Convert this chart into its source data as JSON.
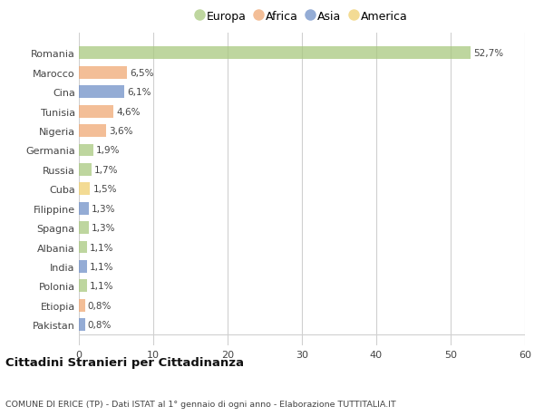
{
  "countries": [
    "Romania",
    "Marocco",
    "Cina",
    "Tunisia",
    "Nigeria",
    "Germania",
    "Russia",
    "Cuba",
    "Filippine",
    "Spagna",
    "Albania",
    "India",
    "Polonia",
    "Etiopia",
    "Pakistan"
  ],
  "values": [
    52.7,
    6.5,
    6.1,
    4.6,
    3.6,
    1.9,
    1.7,
    1.5,
    1.3,
    1.3,
    1.1,
    1.1,
    1.1,
    0.8,
    0.8
  ],
  "labels": [
    "52,7%",
    "6,5%",
    "6,1%",
    "4,6%",
    "3,6%",
    "1,9%",
    "1,7%",
    "1,5%",
    "1,3%",
    "1,3%",
    "1,1%",
    "1,1%",
    "1,1%",
    "0,8%",
    "0,8%"
  ],
  "continents": [
    "Europa",
    "Africa",
    "Asia",
    "Africa",
    "Africa",
    "Europa",
    "Europa",
    "America",
    "Asia",
    "Europa",
    "Europa",
    "Asia",
    "Europa",
    "Africa",
    "Asia"
  ],
  "continent_colors": {
    "Europa": "#a8c97f",
    "Africa": "#f0a875",
    "Asia": "#7090c8",
    "America": "#f0d070"
  },
  "legend_order": [
    "Europa",
    "Africa",
    "Asia",
    "America"
  ],
  "legend_colors": [
    "#a8c97f",
    "#f0a875",
    "#7090c8",
    "#f0d070"
  ],
  "background_color": "#ffffff",
  "grid_color": "#d0d0d0",
  "xlim": [
    0,
    60
  ],
  "xticks": [
    0,
    10,
    20,
    30,
    40,
    50,
    60
  ],
  "title": "Cittadini Stranieri per Cittadinanza",
  "subtitle": "COMUNE DI ERICE (TP) - Dati ISTAT al 1° gennaio di ogni anno - Elaborazione TUTTITALIA.IT",
  "bar_alpha": 0.75,
  "bar_height": 0.65
}
